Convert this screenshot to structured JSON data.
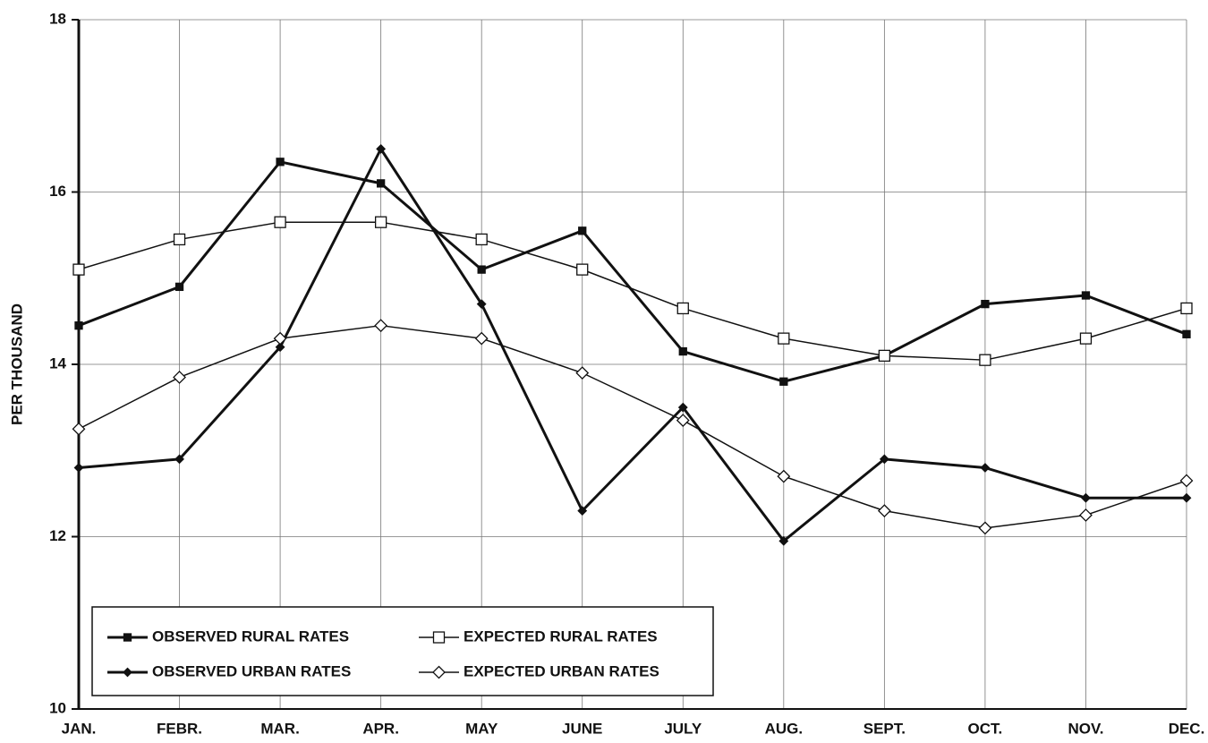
{
  "chart_data": {
    "type": "line",
    "y_label": "PER THOUSAND",
    "categories": [
      "JAN.",
      "FEBR.",
      "MAR.",
      "APR.",
      "MAY",
      "JUNE",
      "JULY",
      "AUG.",
      "SEPT.",
      "OCT.",
      "NOV.",
      "DEC."
    ],
    "series": [
      {
        "name": "OBSERVED RURAL RATES",
        "color": "#111111",
        "marker": "square-filled",
        "line_width": 3,
        "values": [
          14.45,
          14.9,
          16.35,
          16.1,
          15.1,
          15.55,
          14.15,
          13.8,
          14.1,
          14.7,
          14.8,
          14.35
        ]
      },
      {
        "name": "EXPECTED RURAL RATES",
        "color": "#111111",
        "marker": "square-open",
        "line_width": 1.5,
        "values": [
          15.1,
          15.45,
          15.65,
          15.65,
          15.45,
          15.1,
          14.65,
          14.3,
          14.1,
          14.05,
          14.3,
          14.65
        ]
      },
      {
        "name": "OBSERVED URBAN RATES",
        "color": "#111111",
        "marker": "diamond-filled",
        "line_width": 3,
        "values": [
          12.8,
          12.9,
          14.2,
          16.5,
          14.7,
          12.3,
          13.5,
          11.95,
          12.9,
          12.8,
          12.45,
          12.45
        ]
      },
      {
        "name": "EXPECTED URBAN RATES",
        "color": "#111111",
        "marker": "diamond-open",
        "line_width": 1.5,
        "values": [
          13.25,
          13.85,
          14.3,
          14.45,
          14.3,
          13.9,
          13.35,
          12.7,
          12.3,
          12.1,
          12.25,
          12.65
        ]
      }
    ],
    "ylim": [
      10,
      18
    ],
    "yticks": [
      10,
      12,
      14,
      16,
      18
    ],
    "grid": true,
    "legend": "lower left"
  }
}
